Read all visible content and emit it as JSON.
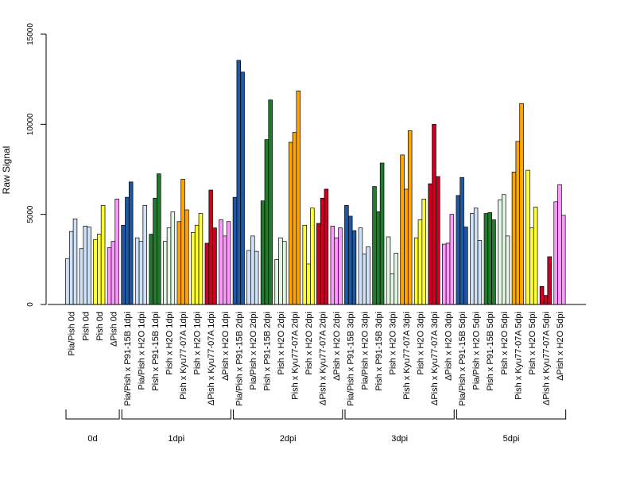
{
  "chart_data": {
    "type": "bar",
    "ylabel": "Raw Signal",
    "ylim": [
      0,
      15000
    ],
    "yticks": [
      0,
      5000,
      10000,
      15000
    ],
    "grid": false,
    "legend": "none",
    "colors": {
      "Pia/Pish": "#cfe1f7",
      "Pish": "#ffff33",
      "ΔPish": "#ff99ff",
      "Pia/Pish x P91-15B": "#1f57a3",
      "Pia/Pish x H2O": "#cfe1f7",
      "Pish x P91-15B": "#237a2f",
      "Pish x H2O": "#e3f5e3",
      "Pish x Kyu77-07A": "#ffa500",
      "ΔPish x Kyu77-07A": "#cc0022",
      "ΔPish x H2O": "#ff99ff"
    },
    "categories": [
      {
        "label": "Pia/Pish 0d",
        "color": "Pia/Pish",
        "values": [
          2550,
          4050,
          4750
        ]
      },
      {
        "label": "Pish 0d",
        "color": "Pia/Pish",
        "values": [
          3100,
          4350,
          4300
        ]
      },
      {
        "label": "Pish 0d",
        "color": "Pish",
        "values": [
          3600,
          3900,
          5500
        ]
      },
      {
        "label": "ΔPish 0d",
        "color": "ΔPish",
        "values": [
          3150,
          3500,
          5850
        ]
      },
      {
        "label": "Pia/Pish x P91-15B 1dpi",
        "color": "Pia/Pish x P91-15B",
        "values": [
          4400,
          5950,
          6800
        ]
      },
      {
        "label": "Pia/Pish x H2O 1dpi",
        "color": "Pia/Pish x H2O",
        "values": [
          3700,
          3500,
          5500
        ]
      },
      {
        "label": "Pish x P91-15B 1dpi",
        "color": "Pish x P91-15B",
        "values": [
          3900,
          5900,
          7250
        ]
      },
      {
        "label": "Pish x H2O 1dpi",
        "color": "Pish x H2O",
        "values": [
          3500,
          4250,
          5150
        ]
      },
      {
        "label": "Pish x Kyu77-07A 1dpi",
        "color": "Pish x Kyu77-07A",
        "values": [
          4600,
          6950,
          5250
        ]
      },
      {
        "label": "Pish x H2O 1dpi",
        "color": "Pish",
        "values": [
          4000,
          4400,
          5050
        ]
      },
      {
        "label": "ΔPish x Kyu77-07A 1dpi",
        "color": "ΔPish x Kyu77-07A",
        "values": [
          3400,
          6350,
          4250
        ]
      },
      {
        "label": "ΔPish x H2O 1dpi",
        "color": "ΔPish x H2O",
        "values": [
          4700,
          3800,
          4600
        ]
      },
      {
        "label": "Pia/Pish x P91-15B 2dpi",
        "color": "Pia/Pish x P91-15B",
        "values": [
          5950,
          13550,
          12900
        ]
      },
      {
        "label": "Pia/Pish x H2O 2dpi",
        "color": "Pia/Pish x H2O",
        "values": [
          3000,
          3800,
          2950
        ]
      },
      {
        "label": "Pish x P91-15B 2dpi",
        "color": "Pish x P91-15B",
        "values": [
          5750,
          9150,
          11350
        ]
      },
      {
        "label": "Pish x H2O 2dpi",
        "color": "Pish x H2O",
        "values": [
          2500,
          3700,
          3500
        ]
      },
      {
        "label": "Pish x Kyu77-07A 2dpi",
        "color": "Pish x Kyu77-07A",
        "values": [
          9000,
          9550,
          11850
        ]
      },
      {
        "label": "Pish x H2O 2dpi",
        "color": "Pish",
        "values": [
          4400,
          2250,
          5350
        ]
      },
      {
        "label": "ΔPish x Kyu77-07A 2dpi",
        "color": "ΔPish x Kyu77-07A",
        "values": [
          4500,
          5900,
          6400
        ]
      },
      {
        "label": "ΔPish x H2O 2dpi",
        "color": "ΔPish x H2O",
        "values": [
          4350,
          3700,
          4250
        ]
      },
      {
        "label": "Pia/Pish x P91-15B 3dpi",
        "color": "Pia/Pish x P91-15B",
        "values": [
          5500,
          4900,
          4100
        ]
      },
      {
        "label": "Pia/Pish x H2O 3dpi",
        "color": "Pia/Pish x H2O",
        "values": [
          4250,
          2800,
          3200
        ]
      },
      {
        "label": "Pish x P91-15B 3dpi",
        "color": "Pish x P91-15B",
        "values": [
          6550,
          5150,
          7850
        ]
      },
      {
        "label": "Pish x H2O 3dpi",
        "color": "Pish x H2O",
        "values": [
          3750,
          1700,
          2850
        ]
      },
      {
        "label": "Pish x Kyu77-07A 3dpi",
        "color": "Pish x Kyu77-07A",
        "values": [
          8300,
          6400,
          9650
        ]
      },
      {
        "label": "Pish x H2O 3dpi",
        "color": "Pish",
        "values": [
          3700,
          4700,
          5850
        ]
      },
      {
        "label": "ΔPish x Kyu77-07A 3dpi",
        "color": "ΔPish x Kyu77-07A",
        "values": [
          6700,
          10000,
          7100
        ]
      },
      {
        "label": "ΔPish x H2O 3dpi",
        "color": "ΔPish x H2O",
        "values": [
          3350,
          3400,
          5000
        ]
      },
      {
        "label": "Pia/Pish x P91-15B 5dpi",
        "color": "Pia/Pish x P91-15B",
        "values": [
          6050,
          7050,
          4300
        ]
      },
      {
        "label": "Pia/Pish x H2O 5dpi",
        "color": "Pia/Pish x H2O",
        "values": [
          5050,
          5350,
          3550
        ]
      },
      {
        "label": "Pish x P91-15B 5dpi",
        "color": "Pish x P91-15B",
        "values": [
          5050,
          5100,
          4700
        ]
      },
      {
        "label": "Pish x H2O 5dpi",
        "color": "Pish x H2O",
        "values": [
          5800,
          6100,
          3800
        ]
      },
      {
        "label": "Pish x Kyu77-07A 5dpi",
        "color": "Pish x Kyu77-07A",
        "values": [
          7350,
          9050,
          11150
        ]
      },
      {
        "label": "Pish x H2O 5dpi",
        "color": "Pish",
        "values": [
          7450,
          4250,
          5400
        ]
      },
      {
        "label": "ΔPish x Kyu77-07A 5dpi",
        "color": "ΔPish x Kyu77-07A",
        "values": [
          1000,
          500,
          2650
        ]
      },
      {
        "label": "ΔPish x H2O 5dpi",
        "color": "ΔPish x H2O",
        "values": [
          5700,
          6650,
          4950
        ]
      }
    ],
    "groups": [
      {
        "label": "0d",
        "first": 0,
        "last": 3
      },
      {
        "label": "1dpi",
        "first": 4,
        "last": 11
      },
      {
        "label": "2dpi",
        "first": 12,
        "last": 19
      },
      {
        "label": "3dpi",
        "first": 20,
        "last": 27
      },
      {
        "label": "5dpi",
        "first": 28,
        "last": 35
      }
    ]
  }
}
